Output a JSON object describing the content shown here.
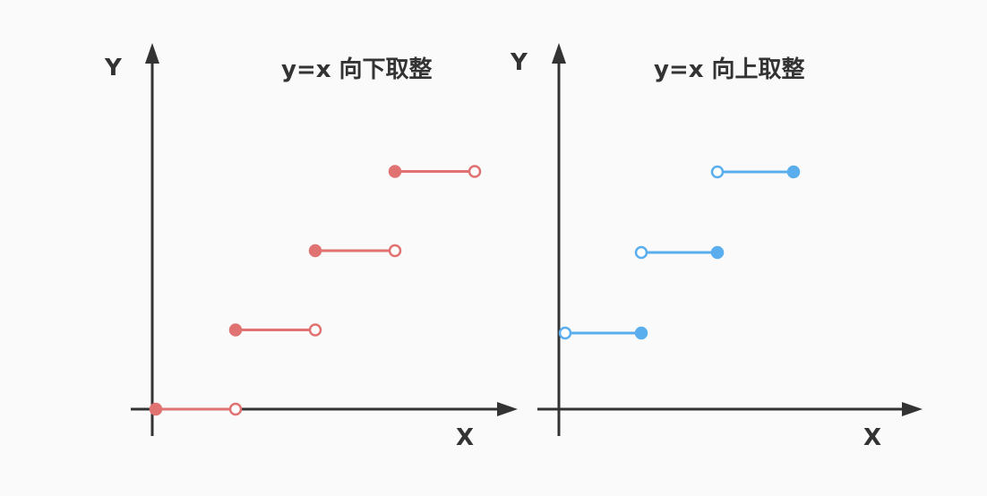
{
  "charts": [
    {
      "id": "floor",
      "title": "y=x 向下取整",
      "xlabel": "X",
      "ylabel": "Y",
      "color": "#e07272",
      "segments": [
        {
          "x_start": 0,
          "x_end": 1,
          "y": 0,
          "start_closed": true,
          "end_closed": false
        },
        {
          "x_start": 1,
          "x_end": 2,
          "y": 1,
          "start_closed": true,
          "end_closed": false
        },
        {
          "x_start": 2,
          "x_end": 3,
          "y": 2,
          "start_closed": true,
          "end_closed": false
        },
        {
          "x_start": 3,
          "x_end": 4,
          "y": 3,
          "start_closed": true,
          "end_closed": false
        }
      ]
    },
    {
      "id": "ceil",
      "title": "y=x 向上取整",
      "xlabel": "X",
      "ylabel": "Y",
      "color": "#5baeee",
      "segments": [
        {
          "x_start": 0,
          "x_end": 1,
          "y": 1,
          "start_closed": false,
          "end_closed": true
        },
        {
          "x_start": 1,
          "x_end": 2,
          "y": 2,
          "start_closed": false,
          "end_closed": true
        },
        {
          "x_start": 2,
          "x_end": 3,
          "y": 3,
          "start_closed": false,
          "end_closed": true
        }
      ]
    }
  ],
  "axis_color": "#333333"
}
